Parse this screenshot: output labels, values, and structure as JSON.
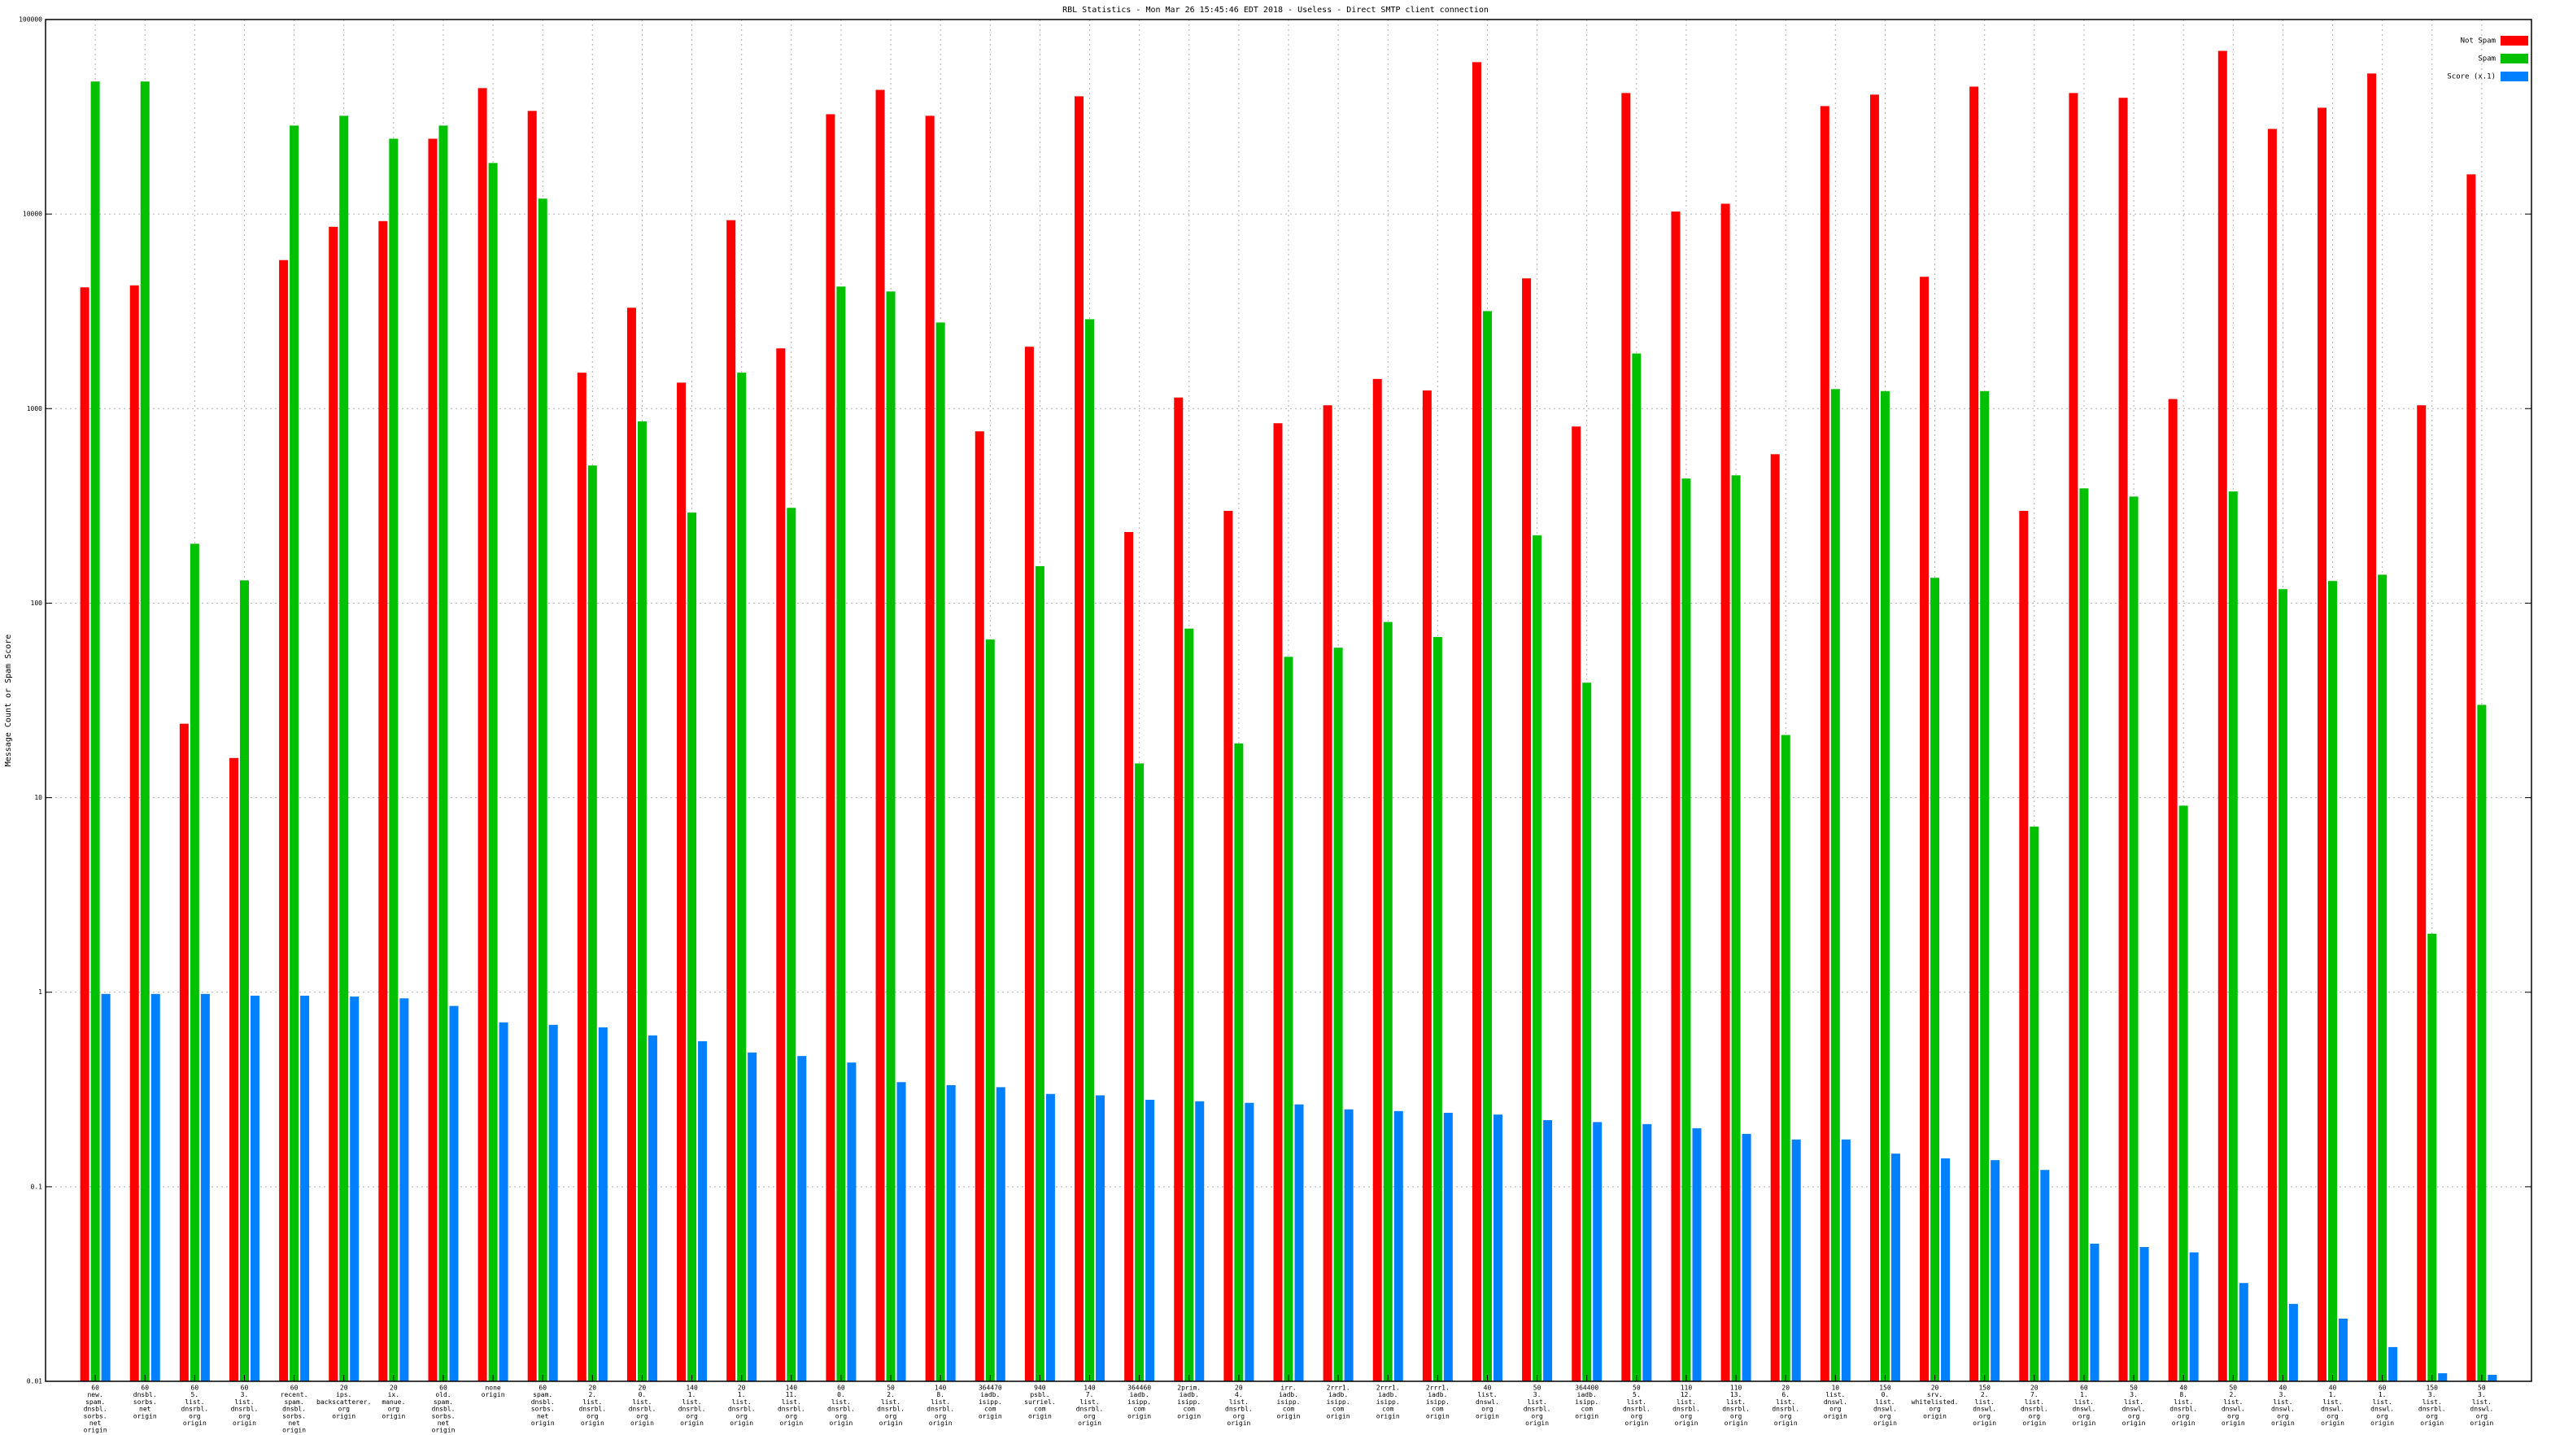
{
  "chart_data": {
    "type": "bar",
    "title": "RBL Statistics - Mon Mar 26 15:45:46 EDT 2018 - Useless - Direct SMTP client connection",
    "y_label": "Message Count or Spam Score",
    "log_scale": true,
    "grid": true,
    "legend": "top-right",
    "ylim": [
      0.01,
      100000
    ],
    "yticks": [
      0.01,
      0.1,
      1,
      10,
      100,
      1000,
      10000,
      100000
    ],
    "categories": [
      [
        "60",
        "new.",
        "spam.",
        "dnsbl.",
        "sorbs.",
        "net",
        "origin"
      ],
      [
        "60",
        "dnsbl.",
        "sorbs.",
        "net",
        "origin"
      ],
      [
        "60",
        "5.",
        "list.",
        "dnsrbl.",
        "org",
        "origin"
      ],
      [
        "60",
        "3.",
        "list.",
        "dnsrbl.",
        "org",
        "origin"
      ],
      [
        "60",
        "recent.",
        "spam.",
        "dnsbl.",
        "sorbs.",
        "net",
        "origin"
      ],
      [
        "20",
        "ips.",
        "backscatterer.",
        "org",
        "origin"
      ],
      [
        "20",
        "ix.",
        "manue.",
        "org",
        "origin"
      ],
      [
        "60",
        "old.",
        "spam.",
        "dnsbl.",
        "sorbs.",
        "net",
        "origin"
      ],
      [
        "none",
        "origin"
      ],
      [
        "60",
        "spam.",
        "dnsbl.",
        "sorbs.",
        "net",
        "origin"
      ],
      [
        "20",
        "2.",
        "list.",
        "dnsrbl.",
        "org",
        "origin"
      ],
      [
        "20",
        "0.",
        "list.",
        "dnsrbl.",
        "org",
        "origin"
      ],
      [
        "140",
        "1.",
        "list.",
        "dnsrbl.",
        "org",
        "origin"
      ],
      [
        "20",
        "1.",
        "list.",
        "dnsrbl.",
        "org",
        "origin"
      ],
      [
        "140",
        "11.",
        "list.",
        "dnsrbl.",
        "org",
        "origin"
      ],
      [
        "60",
        "0.",
        "list.",
        "dnsrbl.",
        "org",
        "origin"
      ],
      [
        "50",
        "2.",
        "list.",
        "dnsrbl.",
        "org",
        "origin"
      ],
      [
        "140",
        "8.",
        "list.",
        "dnsrbl.",
        "org",
        "origin"
      ],
      [
        "364470",
        "iadb.",
        "isipp.",
        "com",
        "origin"
      ],
      [
        "940",
        "psbl.",
        "surriel.",
        "com",
        "origin"
      ],
      [
        "140",
        "7.",
        "list.",
        "dnsrbl.",
        "org",
        "origin"
      ],
      [
        "364460",
        "iadb.",
        "isipp.",
        "com",
        "origin"
      ],
      [
        "2prim.",
        "iadb.",
        "isipp.",
        "com",
        "origin"
      ],
      [
        "20",
        "4.",
        "list.",
        "dnsrbl.",
        "org",
        "origin"
      ],
      [
        "irr.",
        "iadb.",
        "isipp.",
        "com",
        "origin"
      ],
      [
        "2rrr1.",
        "iadb.",
        "isipp.",
        "com",
        "origin"
      ],
      [
        "2rrr1.",
        "iadb.",
        "isipp.",
        "com",
        "origin"
      ],
      [
        "2rrr1.",
        "iadb.",
        "isipp.",
        "com",
        "origin"
      ],
      [
        "40",
        "list.",
        "dnswl.",
        "org",
        "origin"
      ],
      [
        "50",
        "3.",
        "list.",
        "dnsrbl.",
        "org",
        "origin"
      ],
      [
        "364400",
        "iadb.",
        "isipp.",
        "com",
        "origin"
      ],
      [
        "50",
        "5.",
        "list.",
        "dnsrbl.",
        "org",
        "origin"
      ],
      [
        "110",
        "12.",
        "list.",
        "dnsrbl.",
        "org",
        "origin"
      ],
      [
        "110",
        "13.",
        "list.",
        "dnsrbl.",
        "org",
        "origin"
      ],
      [
        "20",
        "6.",
        "list.",
        "dnsrbl.",
        "org",
        "origin"
      ],
      [
        "10",
        "list.",
        "dnswl.",
        "org",
        "origin"
      ],
      [
        "150",
        "0.",
        "list.",
        "dnswl.",
        "org",
        "origin"
      ],
      [
        "20",
        "srv.",
        "whitelisted.",
        "org",
        "origin"
      ],
      [
        "150",
        "2.",
        "list.",
        "dnswl.",
        "org",
        "origin"
      ],
      [
        "20",
        "7.",
        "list.",
        "dnsrbl.",
        "org",
        "origin"
      ],
      [
        "60",
        "1.",
        "list.",
        "dnswl.",
        "org",
        "origin"
      ],
      [
        "50",
        "3.",
        "list.",
        "dnswl.",
        "org",
        "origin"
      ],
      [
        "40",
        "8.",
        "list.",
        "dnsrbl.",
        "org",
        "origin"
      ],
      [
        "50",
        "2.",
        "list.",
        "dnswl.",
        "org",
        "origin"
      ],
      [
        "40",
        "3.",
        "list.",
        "dnswl.",
        "org",
        "origin"
      ],
      [
        "40",
        "1.",
        "list.",
        "dnswl.",
        "org",
        "origin"
      ],
      [
        "60",
        "1.",
        "list.",
        "dnswl.",
        "org",
        "origin"
      ],
      [
        "150",
        "3.",
        "list.",
        "dnsrbl.",
        "org",
        "origin"
      ],
      [
        "50",
        "3.",
        "list.",
        "dnswl.",
        "org",
        "origin"
      ]
    ],
    "series": [
      {
        "name": "Not Spam",
        "color": "#ff0000",
        "values": [
          4200,
          4300,
          24,
          16,
          5800,
          8600,
          9200,
          24400,
          44400,
          33900,
          1530,
          3300,
          1360,
          9300,
          2040,
          32600,
          43500,
          32000,
          764,
          2080,
          40300,
          232,
          1140,
          298,
          841,
          1040,
          1420,
          1240,
          60400,
          4670,
          809,
          41900,
          10300,
          11300,
          583,
          35900,
          41100,
          4760,
          45200,
          298,
          41900,
          39600,
          1120,
          69000,
          27400,
          35200,
          52800,
          1040,
          16000
        ]
      },
      {
        "name": "Spam",
        "color": "#00c000",
        "values": [
          48000,
          48000,
          202,
          131,
          28500,
          32000,
          24400,
          28500,
          18300,
          12000,
          510,
          860,
          292,
          1530,
          309,
          4240,
          4000,
          2770,
          65,
          155,
          2880,
          15,
          74,
          19,
          53,
          59,
          80,
          67,
          3170,
          223,
          39,
          1920,
          437,
          454,
          21,
          1260,
          1230,
          135,
          1230,
          7.1,
          389,
          353,
          9.1,
          375,
          118,
          130,
          140,
          2.0,
          30
        ]
      },
      {
        "name": "Score (x.1)",
        "color": "#0080ff",
        "values": [
          0.98,
          0.98,
          0.98,
          0.96,
          0.96,
          0.95,
          0.93,
          0.85,
          0.7,
          0.68,
          0.66,
          0.6,
          0.56,
          0.49,
          0.47,
          0.435,
          0.345,
          0.333,
          0.325,
          0.3,
          0.295,
          0.28,
          0.275,
          0.27,
          0.265,
          0.25,
          0.245,
          0.24,
          0.235,
          0.22,
          0.215,
          0.21,
          0.2,
          0.187,
          0.175,
          0.175,
          0.148,
          0.14,
          0.137,
          0.122,
          0.051,
          0.049,
          0.046,
          0.032,
          0.025,
          0.021,
          0.015,
          0.011,
          0.0108
        ]
      }
    ]
  }
}
